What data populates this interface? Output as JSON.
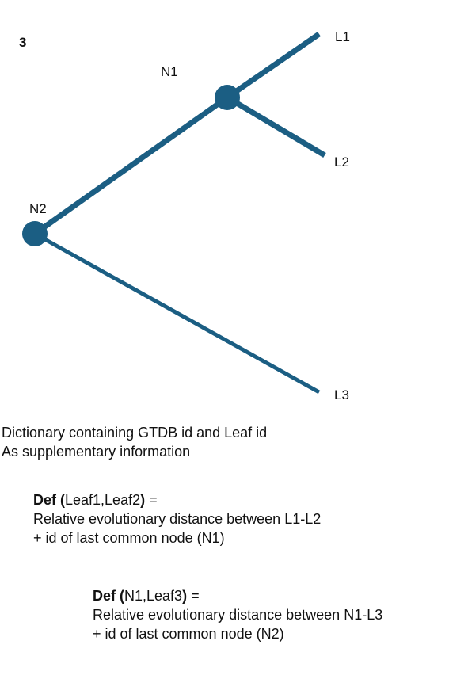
{
  "figure_number": "3",
  "tree": {
    "color": "#1b5e83",
    "nodes": {
      "n1": "N1",
      "n2": "N2"
    },
    "leaves": {
      "l1": "L1",
      "l2": "L2",
      "l3": "L3"
    }
  },
  "text": {
    "dictionary_line1": "Dictionary containing GTDB id and Leaf id",
    "dictionary_line2": "As supplementary information",
    "def1": {
      "keyword": "Def (",
      "args": "Leaf1,Leaf2",
      "close": ")",
      "eq": " =",
      "line2": "Relative evolutionary distance between L1-L2",
      "line3": "+ id of last common node (N1)"
    },
    "def2": {
      "keyword": "Def (",
      "args": "N1,Leaf3",
      "close": ")",
      "eq": " =",
      "line2": "Relative evolutionary distance between N1-L3",
      "line3": "+ id of last common node (N2)"
    }
  }
}
